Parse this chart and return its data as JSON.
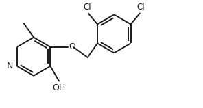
{
  "bg_color": "#ffffff",
  "line_color": "#1a1a1a",
  "line_width": 1.4,
  "font_size": 8.5,
  "fig_width": 2.96,
  "fig_height": 1.58,
  "dpi": 100,
  "xlim": [
    0,
    10
  ],
  "ylim": [
    0,
    5.33
  ]
}
